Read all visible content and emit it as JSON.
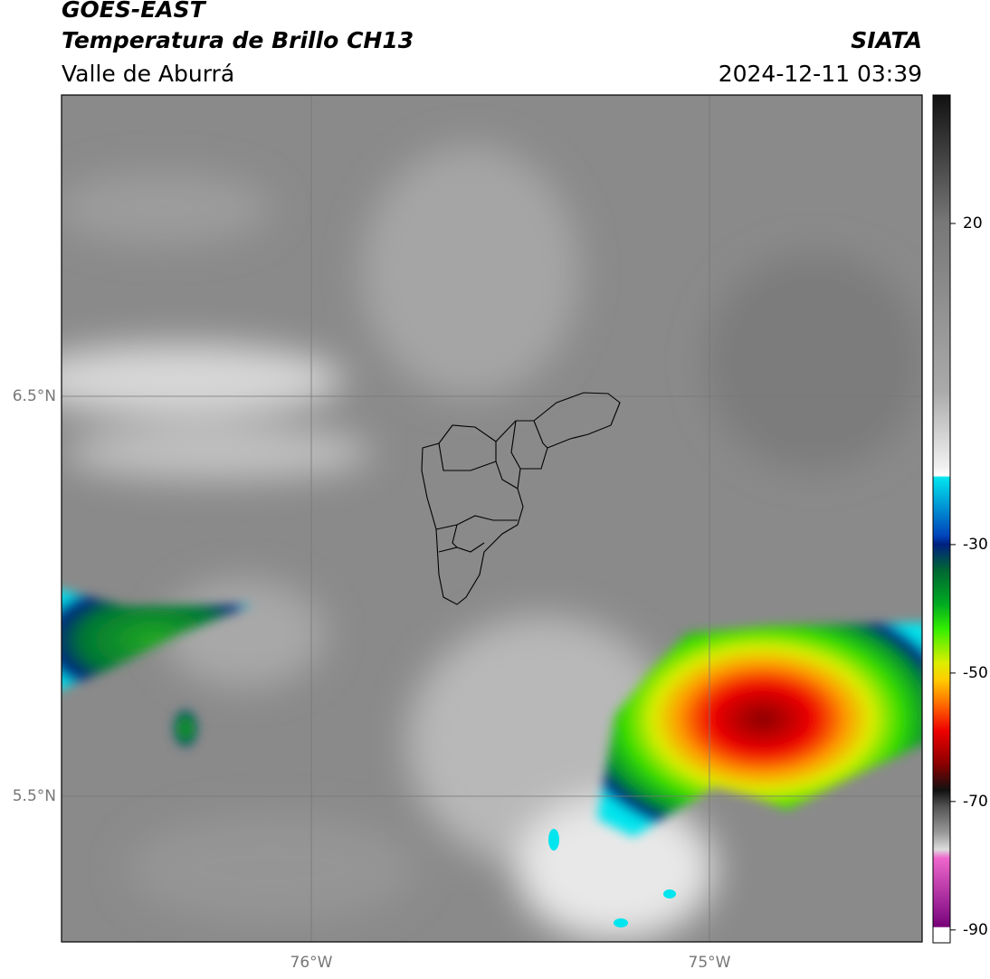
{
  "header": {
    "satellite": "GOES-EAST",
    "product": "Temperatura de Brillo CH13",
    "region": "Valle de Aburrá",
    "source": "SIATA",
    "datetime": "2024-12-11 03:39"
  },
  "map": {
    "lat_labels": [
      "6.5°N",
      "5.5°N"
    ],
    "lon_labels": [
      "76°W",
      "75°W"
    ]
  },
  "colorbar": {
    "vlim": [
      -92,
      40
    ],
    "ticks": [
      20,
      -30,
      -50,
      -70,
      -90
    ]
  }
}
